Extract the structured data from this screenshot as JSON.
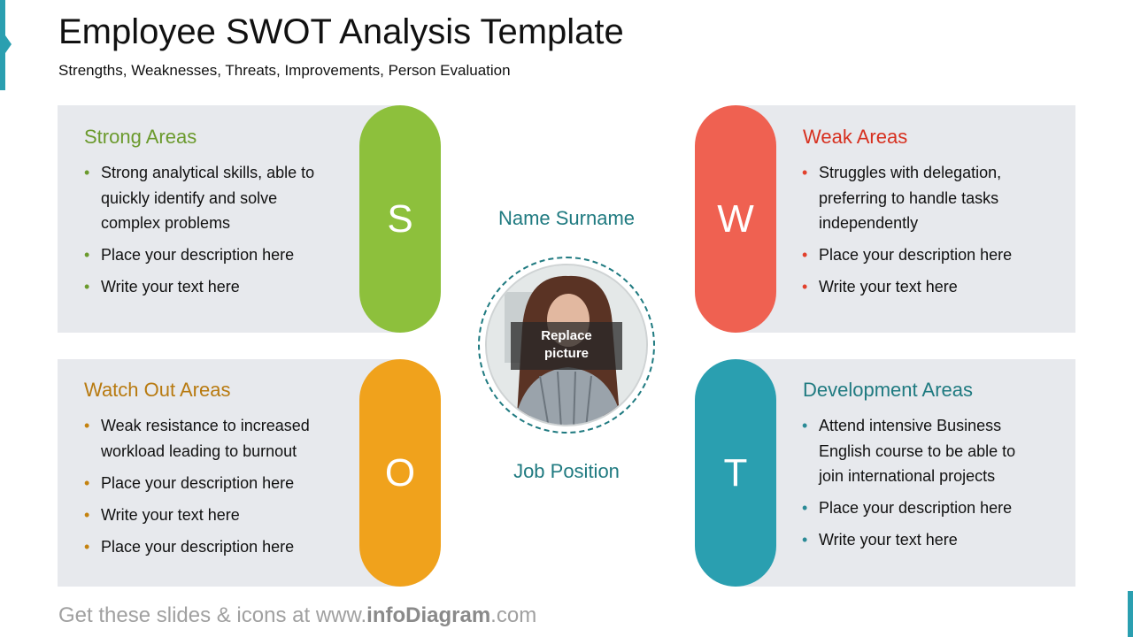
{
  "header": {
    "title": "Employee SWOT Analysis Template",
    "subtitle": "Strengths, Weaknesses, Threats, Improvements, Person Evaluation"
  },
  "quadrants": [
    {
      "letter": "S",
      "heading": "Strong Areas",
      "color": "#8dc03c",
      "heading_color": "#6b9a2d",
      "items": [
        "Strong analytical skills, able to quickly identify and solve complex problems",
        "Place your description here",
        "Write your text here"
      ]
    },
    {
      "letter": "W",
      "heading": "Weak Areas",
      "color": "#ef6151",
      "heading_color": "#d7301f",
      "items": [
        "Struggles with delegation, preferring to handle tasks independently",
        "Place your description here",
        "Write your text here"
      ]
    },
    {
      "letter": "O",
      "heading": "Watch Out Areas",
      "color": "#f0a21c",
      "heading_color": "#b87a10",
      "items": [
        "Weak resistance to increased workload leading to burnout",
        "Place your description here",
        "Write your text here",
        "Place your description here"
      ]
    },
    {
      "letter": "T",
      "heading": "Development Areas",
      "color": "#2a9fb0",
      "heading_color": "#1f7a80",
      "items": [
        "Attend intensive Business English course to be able to join international projects",
        "Place your description here",
        "Write your text here"
      ]
    }
  ],
  "person": {
    "name": "Name Surname",
    "position": "Job Position",
    "photo_label_1": "Replace",
    "photo_label_2": "picture"
  },
  "footer": {
    "prefix": "Get these slides & icons at www.",
    "brand": "infoDiagram",
    "suffix": ".com"
  }
}
